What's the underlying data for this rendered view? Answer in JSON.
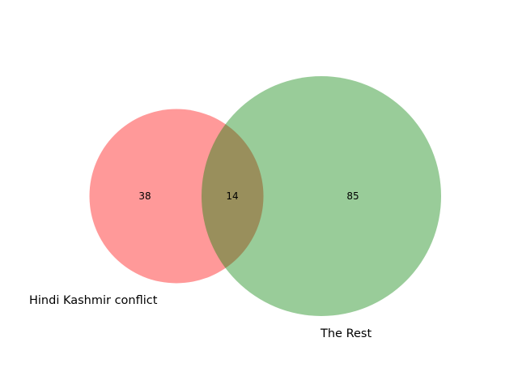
{
  "venn": {
    "sets": [
      {
        "label": "Hindi Kashmir conflict",
        "color": "#ff0000",
        "opacity": 0.4
      },
      {
        "label": "The Rest",
        "color": "#008000",
        "opacity": 0.4
      }
    ],
    "counts": {
      "only_a": "38",
      "intersection": "14",
      "only_b": "85"
    }
  }
}
